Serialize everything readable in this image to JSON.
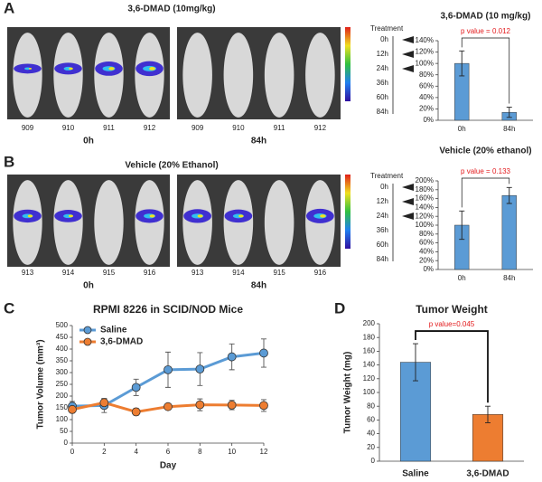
{
  "panel_labels": [
    "A",
    "B",
    "C",
    "D"
  ],
  "imaging": [
    {
      "title": "3,6-DMAD (10mg/kg)",
      "mouse_ids": [
        "909",
        "910",
        "911",
        "912"
      ],
      "timepoints": [
        "0h",
        "84h"
      ],
      "treatment_label": "Treatment",
      "treatment_times": [
        "0h",
        "12h",
        "24h",
        "36h",
        "60h",
        "84h"
      ]
    },
    {
      "title": "Vehicle (20% Ethanol)",
      "mouse_ids": [
        "913",
        "914",
        "915",
        "916"
      ],
      "timepoints": [
        "0h",
        "84h"
      ],
      "treatment_label": "Treatment",
      "treatment_times": [
        "0h",
        "12h",
        "24h",
        "36h",
        "60h",
        "84h"
      ]
    }
  ],
  "chart_data": [
    {
      "type": "bar",
      "title": "3,6-DMAD (10 mg/kg)",
      "categories": [
        "0h",
        "84h"
      ],
      "values": [
        100,
        14
      ],
      "errors": [
        22,
        9
      ],
      "color": "#5b9bd5",
      "ylim": [
        0,
        140
      ],
      "yticks": [
        {
          "value": 0,
          "label": "0%"
        },
        {
          "value": 20,
          "label": "20%"
        },
        {
          "value": 40,
          "label": "40%"
        },
        {
          "value": 60,
          "label": "60%"
        },
        {
          "value": 80,
          "label": "80%"
        },
        {
          "value": 100,
          "label": "100%"
        },
        {
          "value": 120,
          "label": "120%"
        },
        {
          "value": 140,
          "label": "140%"
        }
      ],
      "annotation": "p value = 0.012"
    },
    {
      "type": "bar",
      "title": "Vehicle (20% ethanol)",
      "categories": [
        "0h",
        "84h"
      ],
      "values": [
        100,
        167
      ],
      "errors": [
        32,
        18
      ],
      "color": "#5b9bd5",
      "ylim": [
        0,
        200
      ],
      "yticks": [
        {
          "value": 0,
          "label": "0%"
        },
        {
          "value": 20,
          "label": "20%"
        },
        {
          "value": 40,
          "label": "40%"
        },
        {
          "value": 60,
          "label": "60%"
        },
        {
          "value": 80,
          "label": "80%"
        },
        {
          "value": 100,
          "label": "100%"
        },
        {
          "value": 120,
          "label": "120%"
        },
        {
          "value": 140,
          "label": "140%"
        },
        {
          "value": 160,
          "label": "160%"
        },
        {
          "value": 180,
          "label": "180%"
        },
        {
          "value": 200,
          "label": "200%"
        }
      ],
      "annotation": "p value = 0.133"
    },
    {
      "type": "line",
      "title": "RPMI 8226 in SCID/NOD Mice",
      "x_label": "Day",
      "y_label": "Tumor Volume (mm³)",
      "x": [
        0,
        2,
        4,
        6,
        8,
        10,
        12
      ],
      "series": [
        {
          "name": "Saline",
          "color": "#5b9bd5",
          "values": [
            157,
            160,
            237,
            312,
            315,
            367,
            383
          ],
          "errors": [
            20,
            30,
            35,
            75,
            70,
            55,
            60
          ]
        },
        {
          "name": "3,6-DMAD",
          "color": "#ed7d31",
          "values": [
            143,
            172,
            133,
            155,
            163,
            162,
            160
          ],
          "errors": [
            15,
            15,
            15,
            10,
            25,
            20,
            25
          ]
        }
      ],
      "xlim": [
        0,
        12
      ],
      "xticks": [
        0,
        2,
        4,
        6,
        8,
        10,
        12
      ],
      "ylim": [
        0,
        500
      ],
      "yticks": [
        0,
        50,
        100,
        150,
        200,
        250,
        300,
        350,
        400,
        450,
        500
      ]
    },
    {
      "type": "bar",
      "title": "Tumor Weight",
      "y_label": "Tumor Weight (mg)",
      "categories": [
        "Saline",
        "3,6-DMAD"
      ],
      "values": [
        144,
        68
      ],
      "errors": [
        27,
        12
      ],
      "colors": [
        "#5b9bd5",
        "#ed7d31"
      ],
      "ylim": [
        0,
        200
      ],
      "yticks": [
        0,
        20,
        40,
        60,
        80,
        100,
        120,
        140,
        160,
        180,
        200
      ],
      "annotation": "p value=0.045"
    }
  ]
}
